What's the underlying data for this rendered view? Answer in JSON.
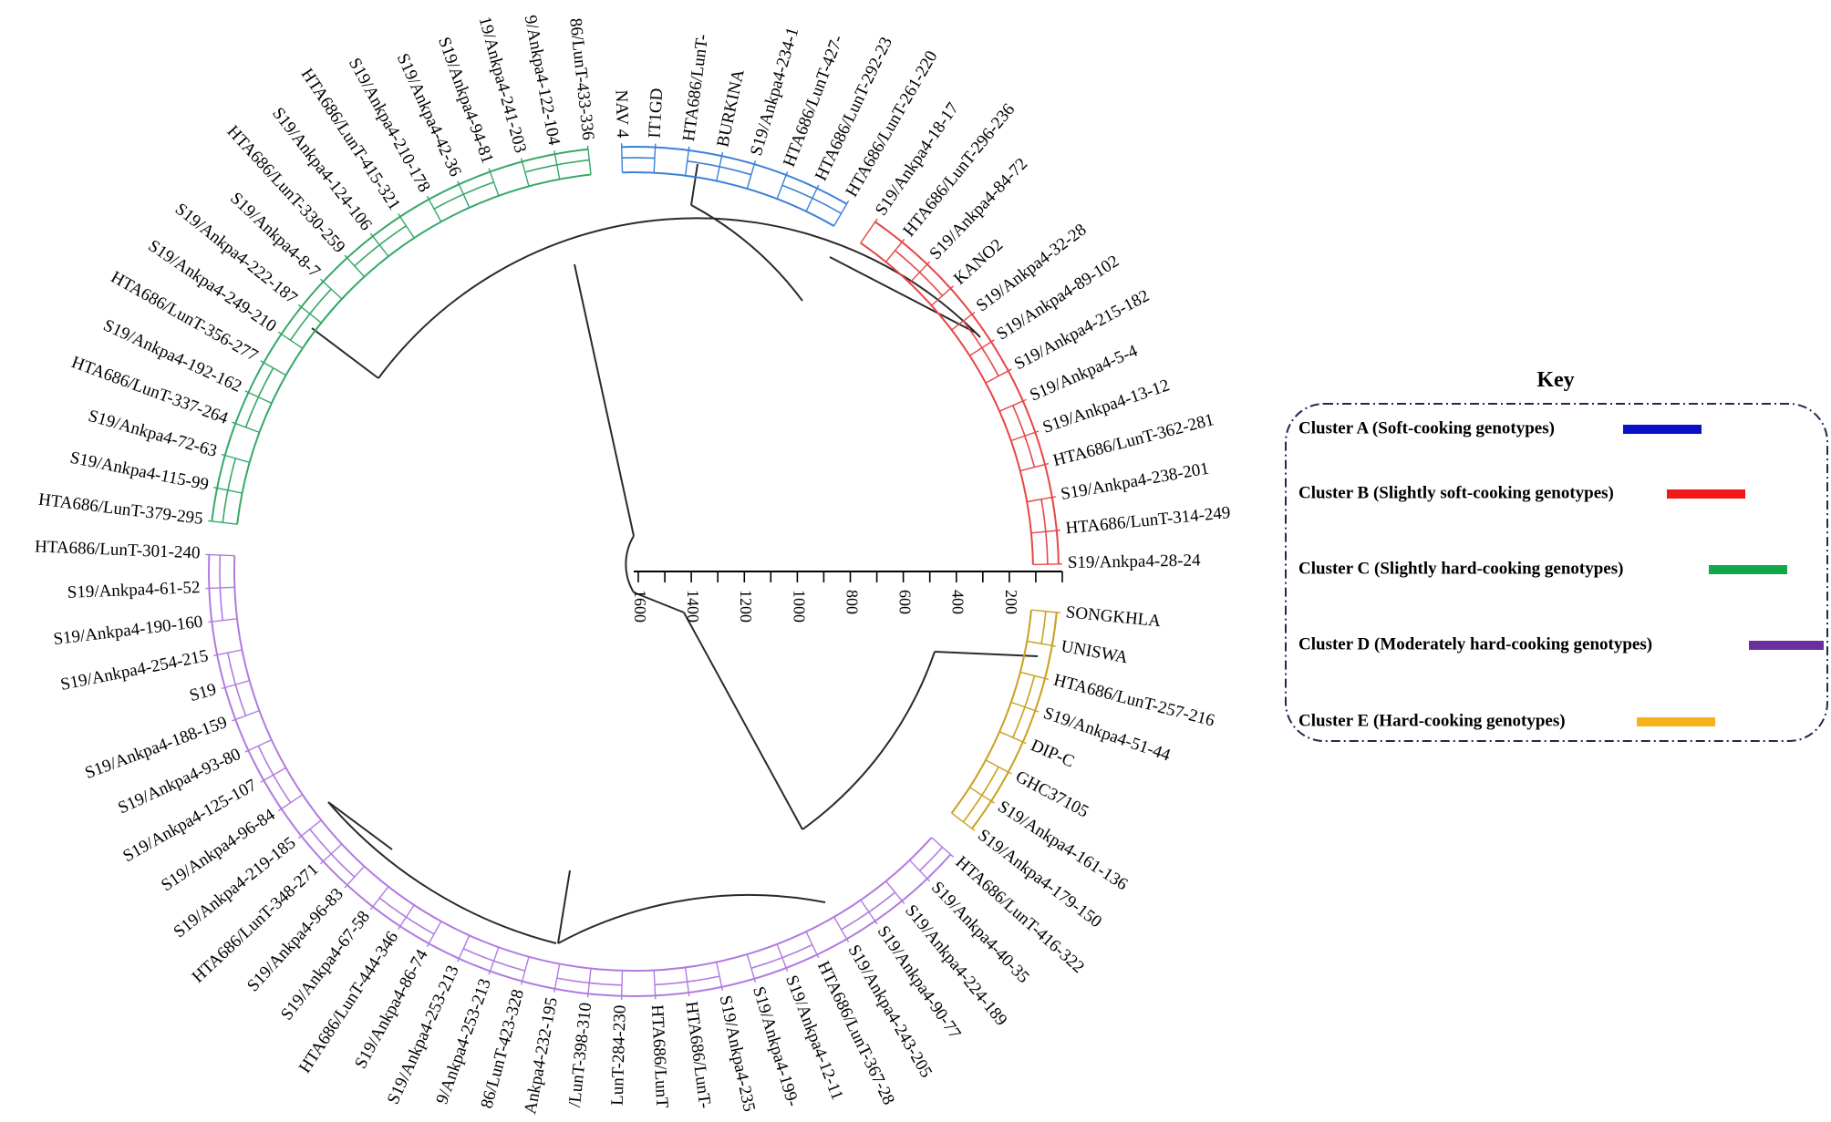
{
  "scale_axis": {
    "ticks": [
      "1600",
      "1400",
      "1200",
      "1000",
      "800",
      "600",
      "400",
      "200"
    ]
  },
  "key": {
    "title": "Key",
    "entries": [
      {
        "label": "Cluster A (Soft-cooking  genotypes)",
        "color": "#0a10c8"
      },
      {
        "label": "Cluster B (Slightly soft-cooking genotypes)",
        "color": "#f01818"
      },
      {
        "label": "Cluster C (Slightly hard-cooking  genotypes)",
        "color": "#12a84a"
      },
      {
        "label": "Cluster D (Moderately   hard-cooking genotypes)",
        "color": "#6a2fa0"
      },
      {
        "label": "Cluster E (Hard-cooking  genotypes)",
        "color": "#f5b21a"
      }
    ]
  },
  "cluster_colors": {
    "A": "#3a7fd8",
    "B": "#e84545",
    "C": "#35a866",
    "D": "#b07be0",
    "E": "#c9a020"
  },
  "tips": [
    {
      "label": "S19/Ankpa4-28-24",
      "cluster": "B"
    },
    {
      "label": "HTA686/LunT-314-249",
      "cluster": "B"
    },
    {
      "label": "S19/Ankpa4-238-201",
      "cluster": "B"
    },
    {
      "label": "HTA686/LunT-362-281",
      "cluster": "B"
    },
    {
      "label": "S19/Ankpa4-13-12",
      "cluster": "B"
    },
    {
      "label": "S19/Ankpa4-5-4",
      "cluster": "B"
    },
    {
      "label": "S19/Ankpa4-215-182",
      "cluster": "B"
    },
    {
      "label": "S19/Ankpa4-89-102",
      "cluster": "B"
    },
    {
      "label": "S19/Ankpa4-32-28",
      "cluster": "B"
    },
    {
      "label": "KANO2",
      "cluster": "B"
    },
    {
      "label": "S19/Ankpa4-84-72",
      "cluster": "B"
    },
    {
      "label": "HTA686/LunT-296-236",
      "cluster": "B"
    },
    {
      "label": "S19/Ankpa4-18-17",
      "cluster": "B"
    },
    {
      "label": "HTA686/LunT-261-220",
      "cluster": "A"
    },
    {
      "label": "HTA686/LunT-292-23",
      "cluster": "A"
    },
    {
      "label": "HTA686/LunT-427-",
      "cluster": "A"
    },
    {
      "label": "S19/Ankpa4-234-1",
      "cluster": "A"
    },
    {
      "label": "BURKINA",
      "cluster": "A"
    },
    {
      "label": "HTA686/LunT-",
      "cluster": "A"
    },
    {
      "label": "IT1GD",
      "cluster": "A"
    },
    {
      "label": "NAV 4",
      "cluster": "A"
    },
    {
      "label": "86/LunT-433-336",
      "cluster": "C"
    },
    {
      "label": "9/Ankpa4-122-104",
      "cluster": "C"
    },
    {
      "label": "19/Ankpa4-241-203",
      "cluster": "C"
    },
    {
      "label": "S19/Ankpa4-94-81",
      "cluster": "C"
    },
    {
      "label": "S19/Ankpa4-42-36",
      "cluster": "C"
    },
    {
      "label": "S19/Ankpa4-210-178",
      "cluster": "C"
    },
    {
      "label": "HTA686/LunT-415-321",
      "cluster": "C"
    },
    {
      "label": "S19/Ankpa4-124-106",
      "cluster": "C"
    },
    {
      "label": "HTA686/LunT-330-259",
      "cluster": "C"
    },
    {
      "label": "S19/Ankpa4-8-7",
      "cluster": "C"
    },
    {
      "label": "S19/Ankpa4-222-187",
      "cluster": "C"
    },
    {
      "label": "S19/Ankpa4-249-210",
      "cluster": "C"
    },
    {
      "label": "HTA686/LunT-356-277",
      "cluster": "C"
    },
    {
      "label": "S19/Ankpa4-192-162",
      "cluster": "C"
    },
    {
      "label": "HTA686/LunT-337-264",
      "cluster": "C"
    },
    {
      "label": "S19/Ankpa4-72-63",
      "cluster": "C"
    },
    {
      "label": "S19/Ankpa4-115-99",
      "cluster": "C"
    },
    {
      "label": "HTA686/LunT-379-295",
      "cluster": "C"
    },
    {
      "label": "HTA686/LunT-301-240",
      "cluster": "D"
    },
    {
      "label": "S19/Ankpa4-61-52",
      "cluster": "D"
    },
    {
      "label": "S19/Ankpa4-190-160",
      "cluster": "D"
    },
    {
      "label": "S19/Ankpa4-254-215",
      "cluster": "D"
    },
    {
      "label": "S19",
      "cluster": "D"
    },
    {
      "label": "S19/Ankpa4-188-159",
      "cluster": "D"
    },
    {
      "label": "S19/Ankpa4-93-80",
      "cluster": "D"
    },
    {
      "label": "S19/Ankpa4-125-107",
      "cluster": "D"
    },
    {
      "label": "S19/Ankpa4-96-84",
      "cluster": "D"
    },
    {
      "label": "S19/Ankpa4-219-185",
      "cluster": "D"
    },
    {
      "label": "HTA686/LunT-348-271",
      "cluster": "D"
    },
    {
      "label": "S19/Ankpa4-96-83",
      "cluster": "D"
    },
    {
      "label": "S19/Ankpa4-67-58",
      "cluster": "D"
    },
    {
      "label": "HTA686/LunT-444-346",
      "cluster": "D"
    },
    {
      "label": "S19/Ankpa4-86-74",
      "cluster": "D"
    },
    {
      "label": "S19/Ankpa4-253-213",
      "cluster": "D"
    },
    {
      "label": "9/Ankpa4-253-213",
      "cluster": "D"
    },
    {
      "label": "86/LunT-423-328",
      "cluster": "D"
    },
    {
      "label": "Ankpa4-232-195",
      "cluster": "D"
    },
    {
      "label": "/LunT-398-310",
      "cluster": "D"
    },
    {
      "label": "LunT-284-230",
      "cluster": "D"
    },
    {
      "label": "HTA686/LunT",
      "cluster": "D"
    },
    {
      "label": "HTA686/LunT-",
      "cluster": "D"
    },
    {
      "label": "S19/Ankpa4-235",
      "cluster": "D"
    },
    {
      "label": "S19/Ankpa4-199-",
      "cluster": "D"
    },
    {
      "label": "S19/Ankpa4-12-11",
      "cluster": "D"
    },
    {
      "label": "HTA686/LunT-367-28",
      "cluster": "D"
    },
    {
      "label": "S19/Ankpa4-243-205",
      "cluster": "D"
    },
    {
      "label": "S19/Ankpa4-90-77",
      "cluster": "D"
    },
    {
      "label": "S19/Ankpa4-224-189",
      "cluster": "D"
    },
    {
      "label": "S19/Ankpa4-40-35",
      "cluster": "D"
    },
    {
      "label": "HTA686/LunT-416-322",
      "cluster": "D"
    },
    {
      "label": "S19/Ankpa4-179-150",
      "cluster": "E"
    },
    {
      "label": "S19/Ankpa4-161-136",
      "cluster": "E"
    },
    {
      "label": "GHC37105",
      "cluster": "E"
    },
    {
      "label": "DIP-C",
      "cluster": "E"
    },
    {
      "label": "S19/Ankpa4-51-44",
      "cluster": "E"
    },
    {
      "label": "HTA686/LunT-257-216",
      "cluster": "E"
    },
    {
      "label": "UNISWA",
      "cluster": "E"
    },
    {
      "label": "SONGKHLA",
      "cluster": "E"
    }
  ]
}
